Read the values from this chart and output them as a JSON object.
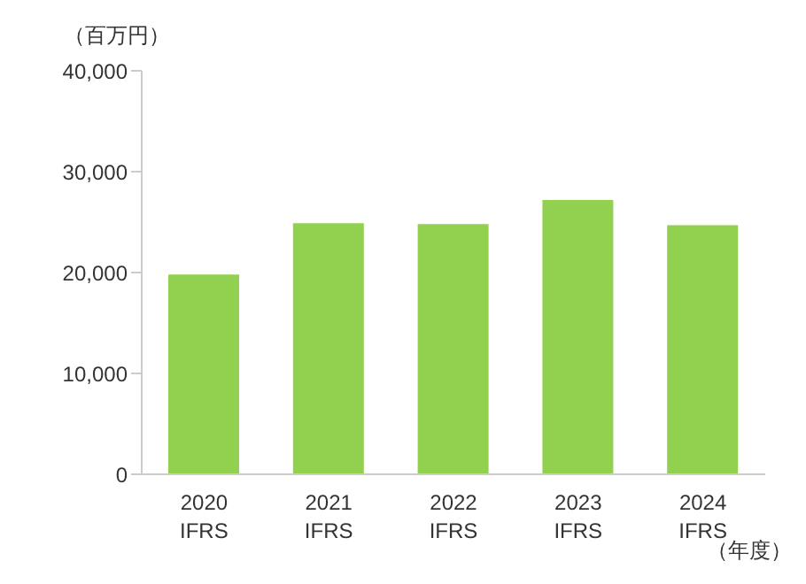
{
  "chart_data": {
    "type": "bar",
    "ylabel": "（百万円）",
    "xlabel": "（年度）",
    "categories": [
      "2020\nIFRS",
      "2021\nIFRS",
      "2022\nIFRS",
      "2023\nIFRS",
      "2024\nIFRS"
    ],
    "values": [
      19800,
      24900,
      24800,
      27200,
      24700
    ],
    "color": "#92d050",
    "ylim": [
      0,
      40000
    ],
    "yticks": [
      {
        "value": 0,
        "label": "0"
      },
      {
        "value": 10000,
        "label": "10,000"
      },
      {
        "value": 20000,
        "label": "20,000"
      },
      {
        "value": 30000,
        "label": "30,000"
      },
      {
        "value": 40000,
        "label": "40,000"
      }
    ],
    "grid": false
  }
}
